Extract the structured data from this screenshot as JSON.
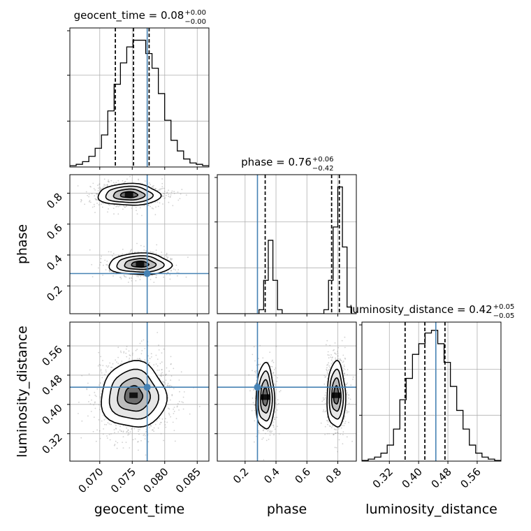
{
  "chart_data": {
    "type": "corner",
    "parameters": [
      "geocent_time",
      "phase",
      "luminosity_distance"
    ],
    "titles": [
      {
        "param": "geocent_time",
        "text": "geocent_time = 0.08",
        "plus": "+0.00",
        "minus": "−0.00"
      },
      {
        "param": "phase",
        "text": "phase = 0.76",
        "plus": "+0.06",
        "minus": "−0.42"
      },
      {
        "param": "luminosity_distance",
        "text": "luminosity_distance = 0.42",
        "plus": "+0.05",
        "minus": "−0.05"
      }
    ],
    "xlabels": [
      "geocent_time",
      "phase",
      "luminosity_distance"
    ],
    "ylabels": [
      "",
      "phase",
      "luminosity_distance"
    ],
    "ranges": {
      "geocent_time": [
        0.0654,
        0.0868
      ],
      "phase": [
        0.02,
        0.92
      ],
      "luminosity_distance": [
        0.245,
        0.625
      ]
    },
    "ticks": {
      "geocent_time": [
        "0.070",
        "0.075",
        "0.080",
        "0.085"
      ],
      "phase": [
        "0.2",
        "0.4",
        "0.6",
        "0.8"
      ],
      "luminosity_distance": [
        "0.32",
        "0.40",
        "0.48",
        "0.56"
      ]
    },
    "truths": {
      "geocent_time": 0.0773,
      "phase": 0.28,
      "luminosity_distance": 0.447
    },
    "quantiles": {
      "geocent_time": [
        0.0724,
        0.0752,
        0.0776
      ],
      "phase": [
        0.33,
        0.76,
        0.81
      ],
      "luminosity_distance": [
        0.363,
        0.417,
        0.472
      ]
    },
    "histograms": {
      "geocent_time": [
        0.01,
        0.02,
        0.04,
        0.08,
        0.14,
        0.24,
        0.42,
        0.62,
        0.78,
        0.9,
        0.95,
        0.95,
        0.85,
        0.74,
        0.55,
        0.35,
        0.2,
        0.12,
        0.06,
        0.03,
        0.02,
        0.01
      ],
      "phase": [
        0,
        0,
        0,
        0,
        0,
        0,
        0,
        0,
        0,
        0.03,
        0.25,
        0.55,
        0.25,
        0.03,
        0,
        0,
        0,
        0,
        0,
        0,
        0,
        0,
        0,
        0.03,
        0.25,
        0.65,
        0.95,
        0.5,
        0.05,
        0
      ],
      "luminosity_distance": [
        0.005,
        0.015,
        0.03,
        0.06,
        0.12,
        0.24,
        0.46,
        0.62,
        0.8,
        0.88,
        0.96,
        0.98,
        0.88,
        0.74,
        0.56,
        0.38,
        0.24,
        0.12,
        0.06,
        0.03,
        0.015,
        0.005
      ]
    },
    "truth_color": "#4682b4",
    "grid": true
  }
}
